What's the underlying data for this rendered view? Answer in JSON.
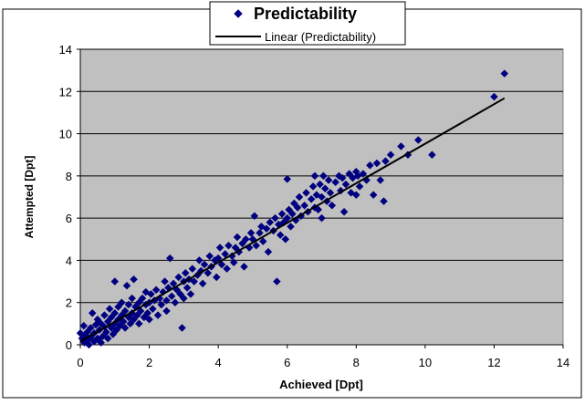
{
  "chart_data": {
    "type": "scatter",
    "xlabel": "Achieved [Dpt]",
    "ylabel": "Attempted [Dpt]",
    "xlim": [
      0,
      14
    ],
    "ylim": [
      0,
      14
    ],
    "x_ticks": [
      "0",
      "2",
      "4",
      "6",
      "8",
      "10",
      "12",
      "14"
    ],
    "y_ticks": [
      "0",
      "2",
      "4",
      "6",
      "8",
      "10",
      "12",
      "14"
    ],
    "grid": "horizontal",
    "plot_background": "#c0c0c0",
    "legend_position": "top-center",
    "series": [
      {
        "name": "Predictability",
        "kind": "scatter",
        "marker": "diamond",
        "color": "#000080",
        "points": [
          [
            0.0,
            0.55
          ],
          [
            0.05,
            0.3
          ],
          [
            0.1,
            0.9
          ],
          [
            0.12,
            0.1
          ],
          [
            0.15,
            0.45
          ],
          [
            0.2,
            0.2
          ],
          [
            0.2,
            0.6
          ],
          [
            0.25,
            0.0
          ],
          [
            0.3,
            0.35
          ],
          [
            0.3,
            0.8
          ],
          [
            0.35,
            1.5
          ],
          [
            0.4,
            0.15
          ],
          [
            0.4,
            0.55
          ],
          [
            0.45,
            0.95
          ],
          [
            0.5,
            0.3
          ],
          [
            0.5,
            1.2
          ],
          [
            0.55,
            0.7
          ],
          [
            0.6,
            0.1
          ],
          [
            0.6,
            1.0
          ],
          [
            0.65,
            0.4
          ],
          [
            0.7,
            0.85
          ],
          [
            0.7,
            1.4
          ],
          [
            0.75,
            0.6
          ],
          [
            0.8,
            1.1
          ],
          [
            0.8,
            0.3
          ],
          [
            0.85,
            1.7
          ],
          [
            0.9,
            0.8
          ],
          [
            0.9,
            1.3
          ],
          [
            0.95,
            0.5
          ],
          [
            1.0,
            1.0
          ],
          [
            1.0,
            1.5
          ],
          [
            1.0,
            3.0
          ],
          [
            1.05,
            0.7
          ],
          [
            1.1,
            1.2
          ],
          [
            1.1,
            1.8
          ],
          [
            1.15,
            0.9
          ],
          [
            1.2,
            1.4
          ],
          [
            1.2,
            2.0
          ],
          [
            1.25,
            1.1
          ],
          [
            1.3,
            1.6
          ],
          [
            1.3,
            0.8
          ],
          [
            1.35,
            2.8
          ],
          [
            1.4,
            1.3
          ],
          [
            1.4,
            1.9
          ],
          [
            1.45,
            1.0
          ],
          [
            1.5,
            1.5
          ],
          [
            1.5,
            2.2
          ],
          [
            1.55,
            3.1
          ],
          [
            1.55,
            1.2
          ],
          [
            1.6,
            1.8
          ],
          [
            1.65,
            1.4
          ],
          [
            1.7,
            2.0
          ],
          [
            1.7,
            1.0
          ],
          [
            1.75,
            1.6
          ],
          [
            1.8,
            2.2
          ],
          [
            1.85,
            1.3
          ],
          [
            1.9,
            1.9
          ],
          [
            1.9,
            2.5
          ],
          [
            1.95,
            1.5
          ],
          [
            2.0,
            2.0
          ],
          [
            2.0,
            1.2
          ],
          [
            2.05,
            2.4
          ],
          [
            2.1,
            1.7
          ],
          [
            2.15,
            2.1
          ],
          [
            2.2,
            2.6
          ],
          [
            2.25,
            1.4
          ],
          [
            2.3,
            2.2
          ],
          [
            2.35,
            1.9
          ],
          [
            2.4,
            2.5
          ],
          [
            2.45,
            3.0
          ],
          [
            2.5,
            2.1
          ],
          [
            2.5,
            1.6
          ],
          [
            2.55,
            2.7
          ],
          [
            2.6,
            4.1
          ],
          [
            2.65,
            2.3
          ],
          [
            2.7,
            2.9
          ],
          [
            2.75,
            2.0
          ],
          [
            2.8,
            2.6
          ],
          [
            2.85,
            3.2
          ],
          [
            2.9,
            2.4
          ],
          [
            2.95,
            0.8
          ],
          [
            3.0,
            3.0
          ],
          [
            3.0,
            2.2
          ],
          [
            3.05,
            3.4
          ],
          [
            3.1,
            2.7
          ],
          [
            3.15,
            3.1
          ],
          [
            3.2,
            2.4
          ],
          [
            3.25,
            3.6
          ],
          [
            3.3,
            3.0
          ],
          [
            3.4,
            3.3
          ],
          [
            3.45,
            4.0
          ],
          [
            3.5,
            3.5
          ],
          [
            3.55,
            2.9
          ],
          [
            3.6,
            3.8
          ],
          [
            3.7,
            3.4
          ],
          [
            3.75,
            4.2
          ],
          [
            3.8,
            3.7
          ],
          [
            3.9,
            4.0
          ],
          [
            3.95,
            3.2
          ],
          [
            4.0,
            4.1
          ],
          [
            4.05,
            4.6
          ],
          [
            4.1,
            3.8
          ],
          [
            4.2,
            4.3
          ],
          [
            4.25,
            3.6
          ],
          [
            4.3,
            4.7
          ],
          [
            4.4,
            4.2
          ],
          [
            4.45,
            3.9
          ],
          [
            4.5,
            4.6
          ],
          [
            4.55,
            5.1
          ],
          [
            4.6,
            4.4
          ],
          [
            4.7,
            4.8
          ],
          [
            4.75,
            3.7
          ],
          [
            4.8,
            5.0
          ],
          [
            4.9,
            4.6
          ],
          [
            4.95,
            5.3
          ],
          [
            5.0,
            5.0
          ],
          [
            5.05,
            6.1
          ],
          [
            5.1,
            4.7
          ],
          [
            5.2,
            5.3
          ],
          [
            5.25,
            5.6
          ],
          [
            5.3,
            4.9
          ],
          [
            5.4,
            5.5
          ],
          [
            5.45,
            4.4
          ],
          [
            5.5,
            5.8
          ],
          [
            5.6,
            5.4
          ],
          [
            5.65,
            6.0
          ],
          [
            5.7,
            3.0
          ],
          [
            5.75,
            5.7
          ],
          [
            5.8,
            5.2
          ],
          [
            5.85,
            6.2
          ],
          [
            5.9,
            5.8
          ],
          [
            5.95,
            5.0
          ],
          [
            6.0,
            6.0
          ],
          [
            6.0,
            7.85
          ],
          [
            6.05,
            6.4
          ],
          [
            6.1,
            5.6
          ],
          [
            6.15,
            6.2
          ],
          [
            6.2,
            6.7
          ],
          [
            6.25,
            5.9
          ],
          [
            6.3,
            6.5
          ],
          [
            6.35,
            7.0
          ],
          [
            6.4,
            6.1
          ],
          [
            6.5,
            6.6
          ],
          [
            6.55,
            7.2
          ],
          [
            6.6,
            6.3
          ],
          [
            6.7,
            6.9
          ],
          [
            6.75,
            7.5
          ],
          [
            6.8,
            6.5
          ],
          [
            6.8,
            8.0
          ],
          [
            6.85,
            7.1
          ],
          [
            6.9,
            6.4
          ],
          [
            6.95,
            7.6
          ],
          [
            7.0,
            7.0
          ],
          [
            7.0,
            6.0
          ],
          [
            7.05,
            8.0
          ],
          [
            7.1,
            7.4
          ],
          [
            7.15,
            6.8
          ],
          [
            7.2,
            7.8
          ],
          [
            7.25,
            7.2
          ],
          [
            7.3,
            6.6
          ],
          [
            7.4,
            7.7
          ],
          [
            7.5,
            8.0
          ],
          [
            7.55,
            7.3
          ],
          [
            7.6,
            7.9
          ],
          [
            7.65,
            6.3
          ],
          [
            7.7,
            7.6
          ],
          [
            7.8,
            8.1
          ],
          [
            7.85,
            7.2
          ],
          [
            7.9,
            7.9
          ],
          [
            8.0,
            8.2
          ],
          [
            8.0,
            7.1
          ],
          [
            8.05,
            8.0
          ],
          [
            8.1,
            7.5
          ],
          [
            8.2,
            8.1
          ],
          [
            8.3,
            7.8
          ],
          [
            8.4,
            8.5
          ],
          [
            8.5,
            7.1
          ],
          [
            8.6,
            8.6
          ],
          [
            8.7,
            7.8
          ],
          [
            8.8,
            6.8
          ],
          [
            8.85,
            8.7
          ],
          [
            9.0,
            9.0
          ],
          [
            9.3,
            9.4
          ],
          [
            9.5,
            9.0
          ],
          [
            9.8,
            9.7
          ],
          [
            10.2,
            9.0
          ],
          [
            12.0,
            11.75
          ],
          [
            12.3,
            12.85
          ]
        ]
      },
      {
        "name": "Linear (Predictability)",
        "kind": "trendline",
        "color": "#000000",
        "x": [
          0,
          12.3
        ],
        "y": [
          0.15,
          11.68
        ]
      }
    ]
  }
}
